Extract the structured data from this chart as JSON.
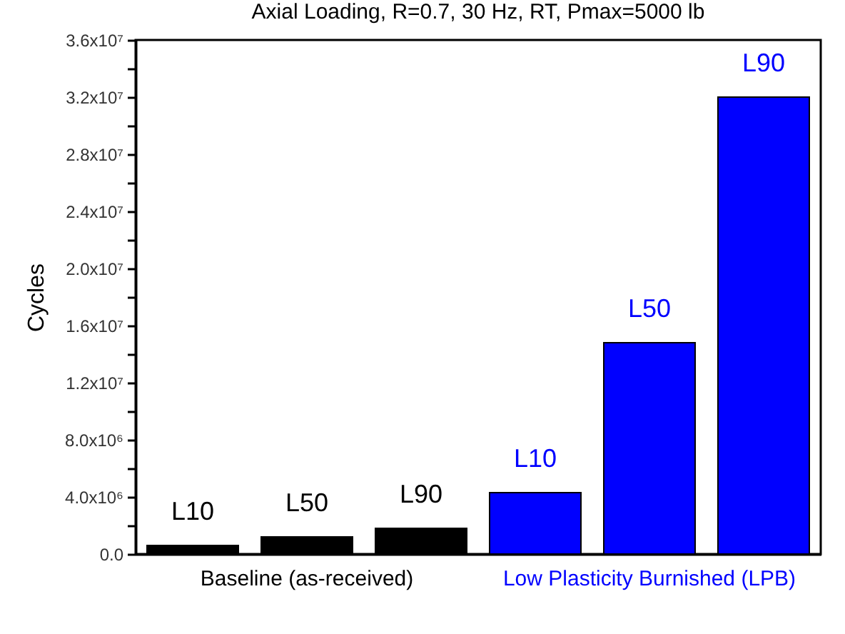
{
  "chart_data": {
    "type": "bar",
    "title": "Axial Loading, R=0.7, 30 Hz, RT, Pmax=5000 lb",
    "ylabel": "Cycles",
    "categories": [
      "L10",
      "L50",
      "L90",
      "L10",
      "L50",
      "L90"
    ],
    "values": [
      600000,
      1200000,
      1800000,
      4300000,
      14800000,
      32000000
    ],
    "colors": [
      "#000000",
      "#000000",
      "#000000",
      "#0000ff",
      "#0000ff",
      "#0000ff"
    ],
    "annotations": [
      "Baseline (as-received)",
      "Low Plasticity Burnished (LPB)"
    ],
    "ylim": [
      0,
      36000000
    ],
    "yticks": [
      {
        "value": 0,
        "label": "0.0"
      },
      {
        "value": 2000000,
        "label": null
      },
      {
        "value": 4000000,
        "label": "4.0x10⁶"
      },
      {
        "value": 6000000,
        "label": null
      },
      {
        "value": 8000000,
        "label": "8.0x10⁶"
      },
      {
        "value": 10000000,
        "label": null
      },
      {
        "value": 12000000,
        "label": "1.2x10⁷"
      },
      {
        "value": 14000000,
        "label": null
      },
      {
        "value": 16000000,
        "label": "1.6x10⁷"
      },
      {
        "value": 18000000,
        "label": null
      },
      {
        "value": 20000000,
        "label": "2.0x10⁷"
      },
      {
        "value": 22000000,
        "label": null
      },
      {
        "value": 24000000,
        "label": "2.4x10⁷"
      },
      {
        "value": 26000000,
        "label": null
      },
      {
        "value": 28000000,
        "label": "2.8x10⁷"
      },
      {
        "value": 30000000,
        "label": null
      },
      {
        "value": 32000000,
        "label": "3.2x10⁷"
      },
      {
        "value": 34000000,
        "label": null
      },
      {
        "value": 36000000,
        "label": "3.6x10⁷"
      }
    ],
    "grid": false
  }
}
